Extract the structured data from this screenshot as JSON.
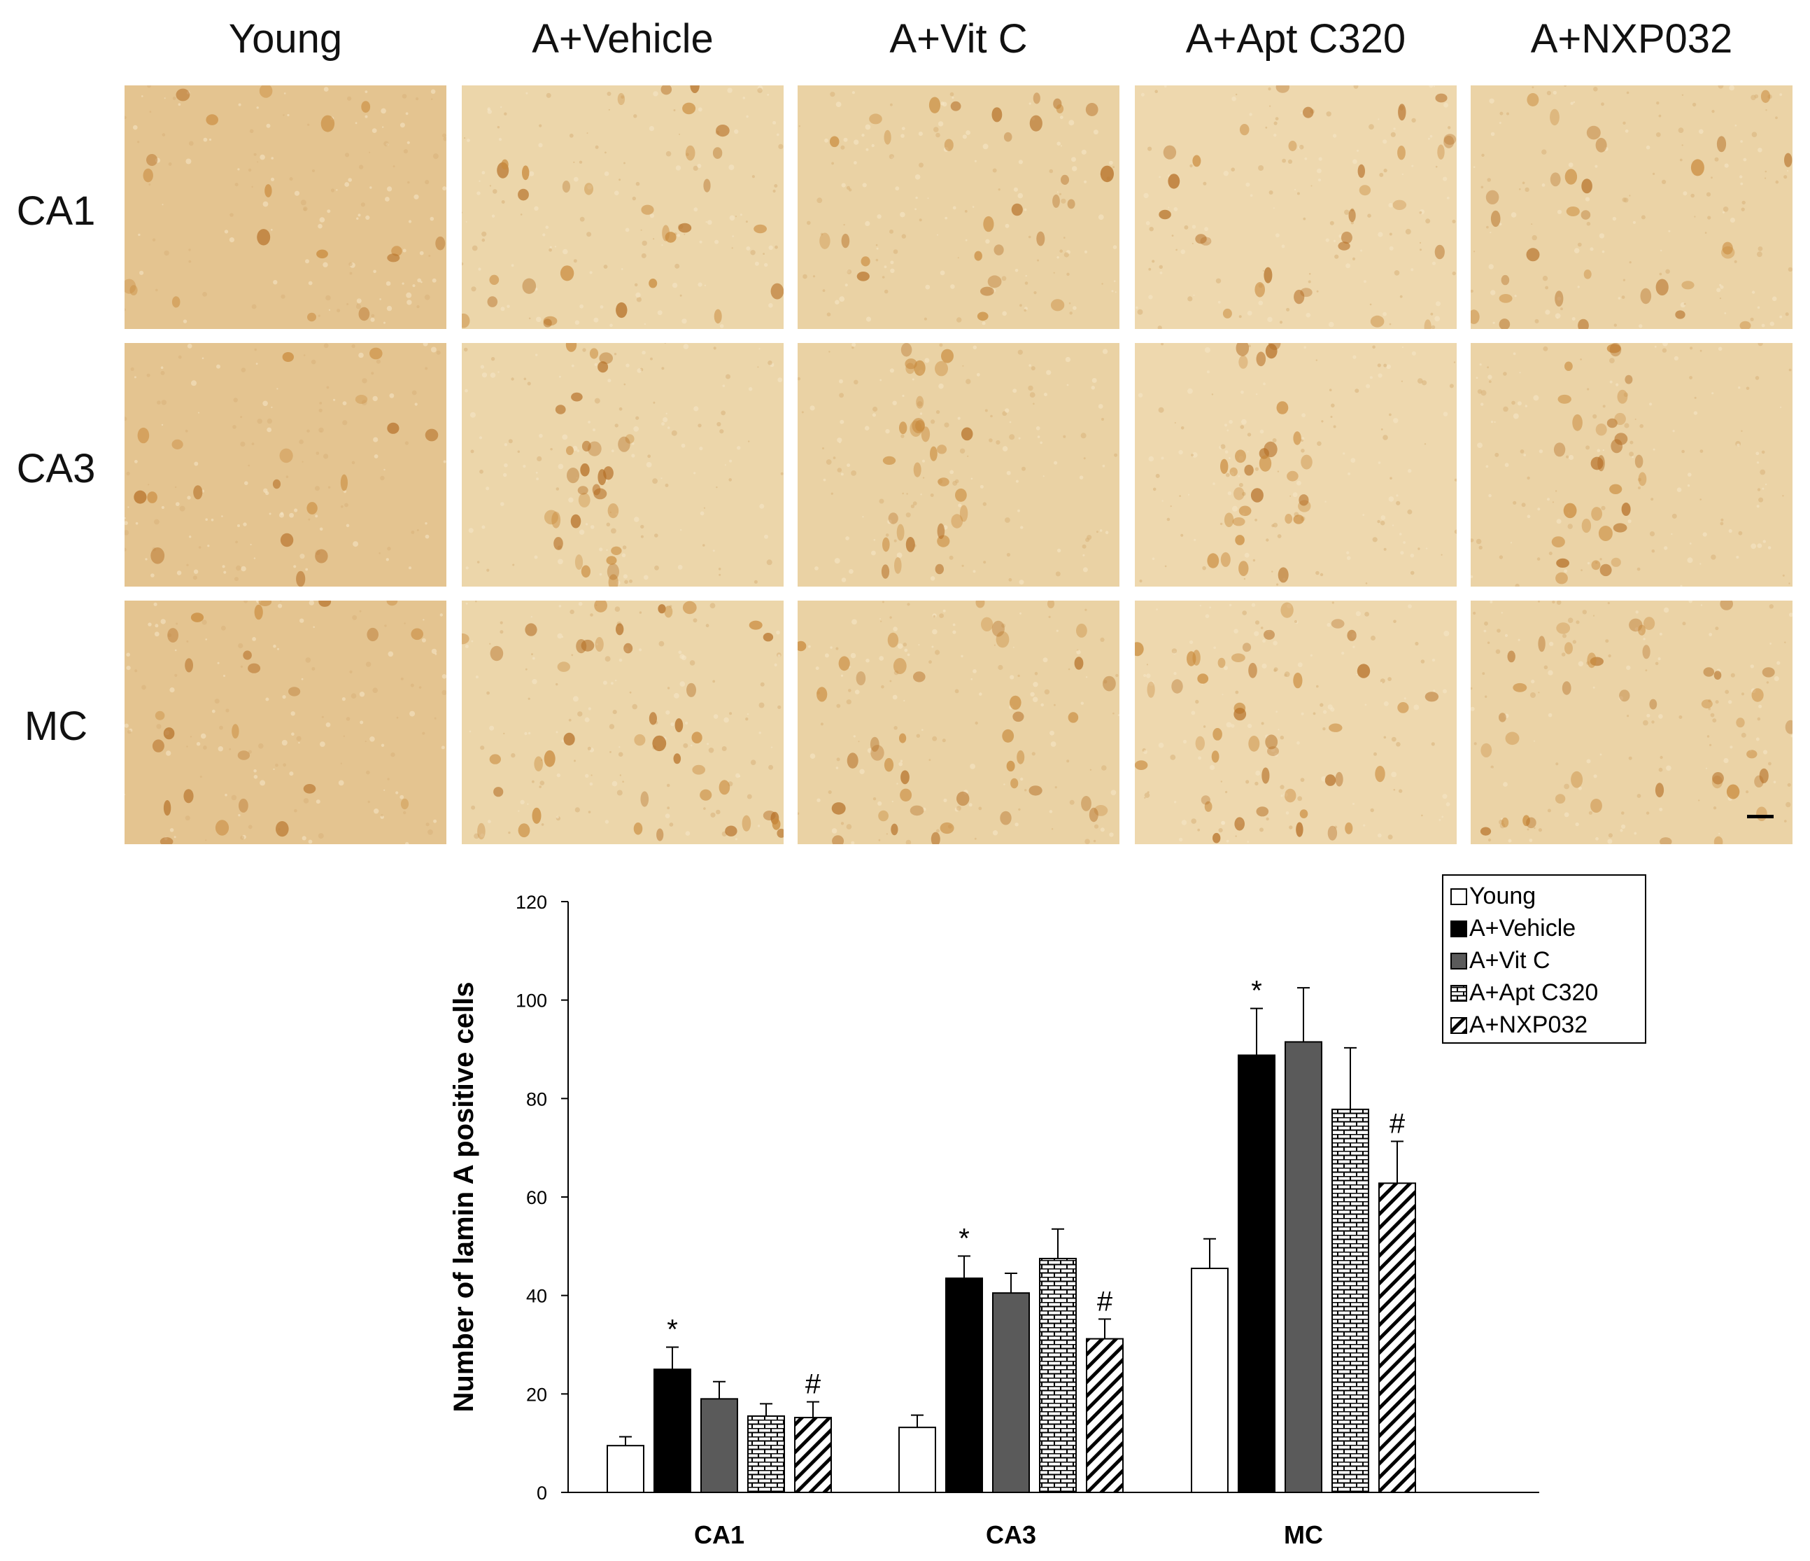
{
  "micrograph_grid": {
    "columns": [
      "Young",
      "A+Vehicle",
      "A+Vit C",
      "A+Apt C320",
      "A+NXP032"
    ],
    "rows": [
      "CA1",
      "CA3",
      "MC"
    ],
    "tones": {
      "background": [
        "#e4c490",
        "#ecd6aa",
        "#ead2a4",
        "#eed8ae",
        "#ebd3a6"
      ],
      "cell": "#c98a3c",
      "cell_dark": "#b56f26"
    }
  },
  "chart_data": {
    "type": "bar",
    "categories": [
      "CA1",
      "CA3",
      "MC"
    ],
    "ylabel": "Number of lamin A positive cells",
    "xlabel": "",
    "ylim": [
      0,
      120
    ],
    "yticks": [
      0,
      20,
      40,
      60,
      80,
      100,
      120
    ],
    "grid": false,
    "legend_position": "top-right",
    "series": [
      {
        "name": "Young",
        "pattern": "white",
        "values": [
          9.5,
          13.2,
          45.5
        ],
        "errors": [
          1.8,
          2.5,
          6.0
        ],
        "marks": [
          "",
          "",
          ""
        ]
      },
      {
        "name": "A+Vehicle",
        "pattern": "black",
        "values": [
          25.0,
          43.5,
          88.8
        ],
        "errors": [
          4.5,
          4.5,
          9.5
        ],
        "marks": [
          "*",
          "*",
          "*"
        ]
      },
      {
        "name": "A+Vit C",
        "pattern": "gray",
        "values": [
          19.0,
          40.5,
          91.5
        ],
        "errors": [
          3.5,
          4.0,
          11.0
        ],
        "marks": [
          "",
          "",
          ""
        ]
      },
      {
        "name": "A+Apt C320",
        "pattern": "brick",
        "values": [
          15.5,
          47.5,
          77.8
        ],
        "errors": [
          2.5,
          6.0,
          12.5
        ],
        "marks": [
          "",
          "",
          ""
        ]
      },
      {
        "name": "A+NXP032",
        "pattern": "diagonal",
        "values": [
          15.2,
          31.2,
          62.8
        ],
        "errors": [
          3.2,
          4.0,
          8.5
        ],
        "marks": [
          "#",
          "#",
          "#"
        ]
      }
    ],
    "colors": {
      "black": "#000000",
      "gray": "#5a5a5a",
      "white": "#ffffff"
    }
  }
}
